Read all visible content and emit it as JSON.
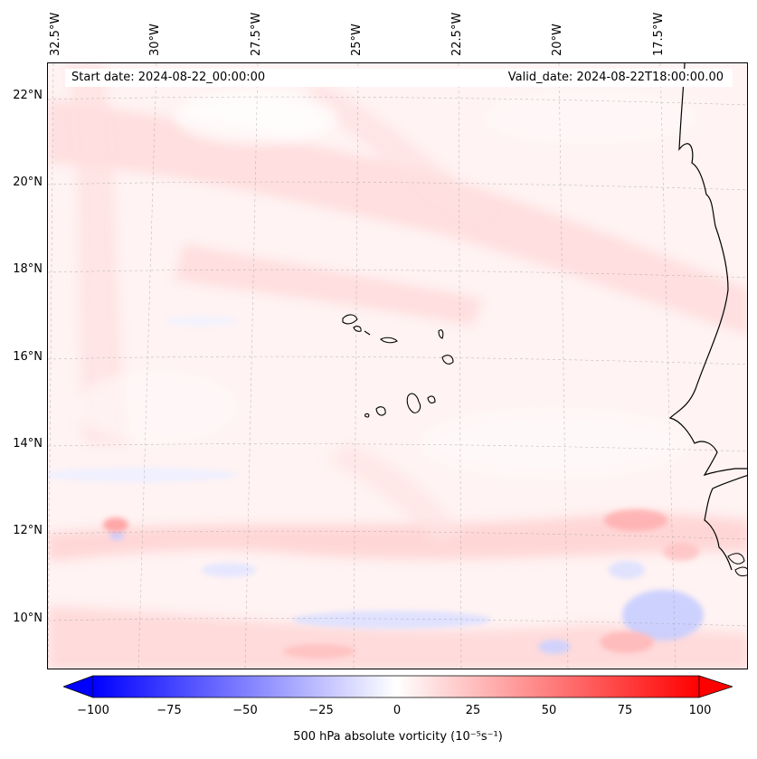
{
  "map": {
    "longitude_labels": [
      "32.5°W",
      "30°W",
      "27.5°W",
      "25°W",
      "22.5°W",
      "20°W",
      "17.5°W"
    ],
    "latitude_labels": [
      "22°N",
      "20°N",
      "18°N",
      "16°N",
      "14°N",
      "12°N",
      "10°N"
    ],
    "start_date": "Start date: 2024-08-22_00:00:00",
    "valid_date": "Valid_date: 2024-08-22T18:00:00.00",
    "variable": "500 hPa absolute vorticity",
    "units": "(10⁻⁵s⁻¹)"
  },
  "colorbar": {
    "ticks": [
      "−100",
      "−75",
      "−50",
      "−25",
      "0",
      "25",
      "50",
      "75",
      "100"
    ],
    "label": "500 hPa absolute vorticity (10⁻⁵s⁻¹)",
    "low_color": "#0000ff",
    "mid_color": "#ffffff",
    "high_color": "#ff0000"
  }
}
